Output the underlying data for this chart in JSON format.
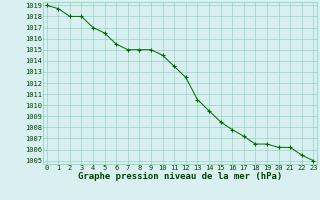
{
  "x": [
    0,
    1,
    2,
    3,
    4,
    5,
    6,
    7,
    8,
    9,
    10,
    11,
    12,
    13,
    14,
    15,
    16,
    17,
    18,
    19,
    20,
    21,
    22,
    23
  ],
  "y": [
    1019,
    1018.7,
    1018,
    1018,
    1017,
    1016.5,
    1015.5,
    1015,
    1015,
    1015,
    1014.5,
    1013.5,
    1012.5,
    1010.5,
    1009.5,
    1008.5,
    1007.8,
    1007.2,
    1006.5,
    1006.5,
    1006.2,
    1006.2,
    1005.5,
    1005
  ],
  "ylim_min": 1005,
  "ylim_max": 1019,
  "xlim_min": 0,
  "xlim_max": 23,
  "yticks": [
    1005,
    1006,
    1007,
    1008,
    1009,
    1010,
    1011,
    1012,
    1013,
    1014,
    1015,
    1016,
    1017,
    1018,
    1019
  ],
  "xticks": [
    0,
    1,
    2,
    3,
    4,
    5,
    6,
    7,
    8,
    9,
    10,
    11,
    12,
    13,
    14,
    15,
    16,
    17,
    18,
    19,
    20,
    21,
    22,
    23
  ],
  "line_color": "#006600",
  "marker": "+",
  "bg_color": "#d8f0f0",
  "grid_color": "#88ccbb",
  "xlabel": "Graphe pression niveau de la mer (hPa)",
  "xlabel_color": "#004400",
  "tick_color": "#004400",
  "axis_label_fontsize": 6.5,
  "tick_fontsize": 5.0,
  "bottom_bar_color": "#004400"
}
